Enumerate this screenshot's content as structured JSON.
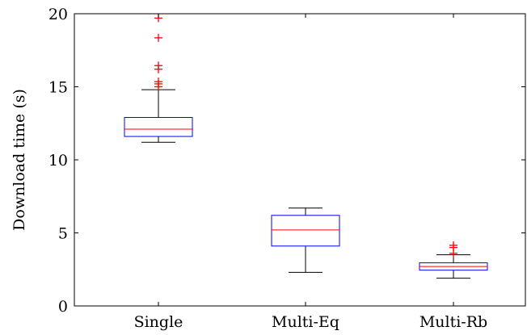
{
  "chart_data": {
    "type": "boxplot",
    "title": "",
    "xlabel": "",
    "ylabel": "Download time (s)",
    "ylim": [
      0,
      20
    ],
    "yticks": [
      0,
      5,
      10,
      15,
      20
    ],
    "grid": false,
    "categories": [
      "Single",
      "Multi-Eq",
      "Multi-Rb"
    ],
    "boxes": [
      {
        "category": "Single",
        "whisker_low": 11.2,
        "q1": 11.6,
        "median": 12.1,
        "q3": 12.9,
        "whisker_high": 14.8,
        "outliers": [
          15.0,
          15.2,
          15.35,
          16.2,
          16.45,
          18.35,
          19.7
        ]
      },
      {
        "category": "Multi-Eq",
        "whisker_low": 2.3,
        "q1": 4.1,
        "median": 5.2,
        "q3": 6.2,
        "whisker_high": 6.7,
        "outliers": []
      },
      {
        "category": "Multi-Rb",
        "whisker_low": 1.9,
        "q1": 2.45,
        "median": 2.7,
        "q3": 2.95,
        "whisker_high": 3.5,
        "outliers": [
          3.6,
          4.0,
          4.15
        ]
      }
    ],
    "colors": {
      "box": "#0000ff",
      "median": "#ff0000",
      "whisker": "#000000",
      "outlier": "#ff0000"
    }
  }
}
